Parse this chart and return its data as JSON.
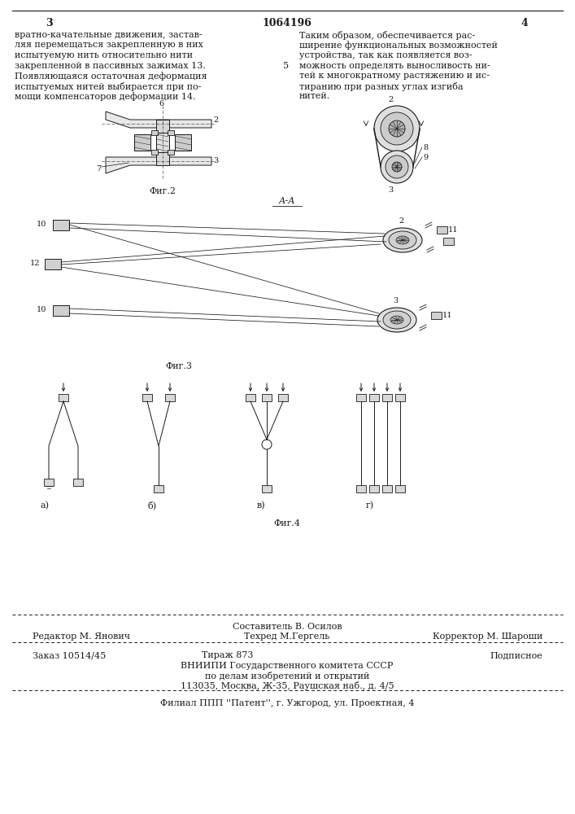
{
  "page_num_left": "3",
  "page_num_center": "1064196",
  "page_num_right": "4",
  "bg_color": "#ffffff",
  "text_color": "#1a1a1a",
  "left_text": [
    "вратно-качательные движения, застав-",
    "ляя перемещаться закрепленную в них",
    "испытуемую нить относительно нити",
    "закрепленной в пассивных зажимах 13.",
    "Появляющаяся остаточная деформация",
    "испытуемых нитей выбирается при по-",
    "мощи компенсаторов деформации 14."
  ],
  "right_text": [
    "Таким образом, обеспечивается рас-",
    "ширение функциональных возможностей",
    "устройства, так как появляется воз-",
    "можность определять выносливость ни-",
    "тей к многократному растяжению и ис-",
    "тиранию при разных углах изгиба",
    "нитей."
  ],
  "fig2_caption": "Фиг.2",
  "fig3_caption": "Фиг.3",
  "fig4_caption": "Фиг.4",
  "section_A_label": "А-А",
  "footer_line1_left": "Редактор М. Янович",
  "footer_line1_center_top": "Составитель В. Осилов",
  "footer_line1_center": "Техред М.Гергель",
  "footer_line1_right": "Корректор М. Шароши",
  "footer_line2_left": "Заказ 10514/45",
  "footer_line2_center": "Тираж 873",
  "footer_line2_right": "Подписное",
  "footer_line3": "ВНИИПИ Государственного комитета СССР",
  "footer_line4": "по делам изобретений и открытий",
  "footer_line5": "113035, Москва, Ж-35, Раушская наб., д. 4/5",
  "footer_line6": "Филиал ППП ''Патент'', г. Ужгород, ул. Проектная, 4"
}
